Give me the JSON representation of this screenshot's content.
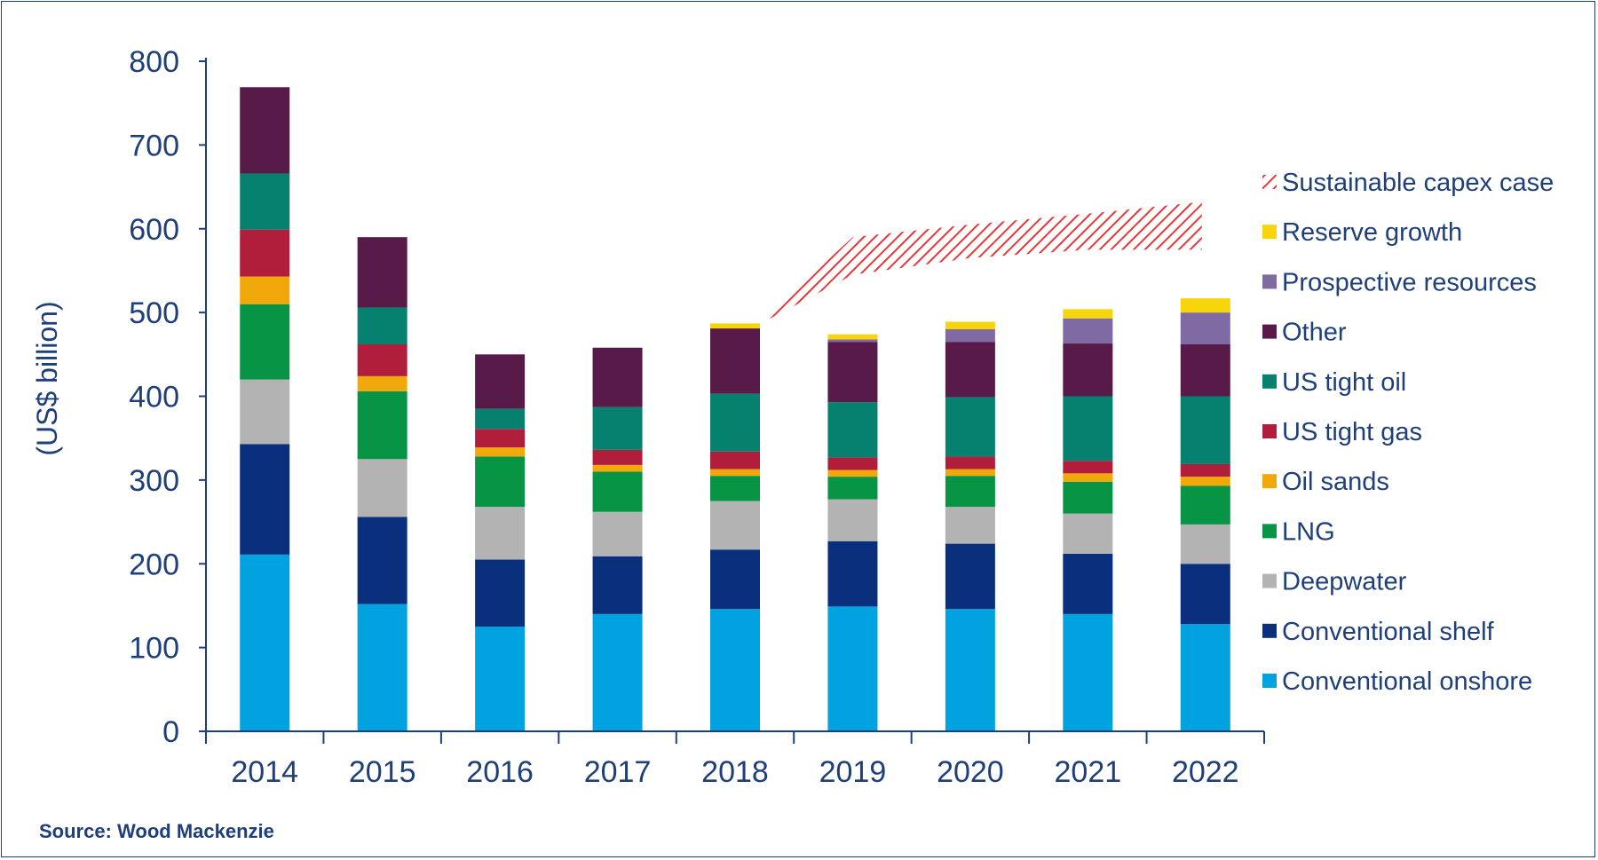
{
  "chart_data": {
    "type": "bar",
    "stacked": true,
    "title": "",
    "xlabel": "",
    "ylabel": "(US$ billion)",
    "ylim": [
      0,
      800
    ],
    "yticks": [
      0,
      100,
      200,
      300,
      400,
      500,
      600,
      700,
      800
    ],
    "categories": [
      "2014",
      "2015",
      "2016",
      "2017",
      "2018",
      "2019",
      "2020",
      "2021",
      "2022"
    ],
    "series": [
      {
        "name": "Conventional onshore",
        "color": "#00a3e0",
        "values": [
          211,
          152,
          125,
          140,
          146,
          149,
          146,
          140,
          128
        ]
      },
      {
        "name": "Conventional shelf",
        "color": "#0a2f7c",
        "values": [
          132,
          104,
          80,
          69,
          71,
          78,
          78,
          72,
          72
        ]
      },
      {
        "name": "Deepwater",
        "color": "#b3b3b3",
        "values": [
          77,
          69,
          63,
          53,
          58,
          50,
          44,
          48,
          47
        ]
      },
      {
        "name": "LNG",
        "color": "#079444",
        "values": [
          90,
          81,
          60,
          48,
          30,
          27,
          37,
          38,
          46
        ]
      },
      {
        "name": "Oil sands",
        "color": "#f1a80a",
        "values": [
          33,
          18,
          11,
          8,
          8,
          8,
          8,
          10,
          11
        ]
      },
      {
        "name": "US tight gas",
        "color": "#b01e3c",
        "values": [
          56,
          38,
          22,
          18,
          21,
          15,
          15,
          15,
          15
        ]
      },
      {
        "name": "US tight oil",
        "color": "#06806f",
        "values": [
          67,
          44,
          24,
          51,
          69,
          66,
          71,
          77,
          81
        ]
      },
      {
        "name": "Other",
        "color": "#581a48",
        "values": [
          103,
          84,
          65,
          71,
          78,
          72,
          66,
          63,
          62
        ]
      },
      {
        "name": "Prospective resources",
        "color": "#7f6aa4",
        "values": [
          0,
          0,
          0,
          0,
          0,
          3,
          15,
          30,
          38
        ]
      },
      {
        "name": "Reserve growth",
        "color": "#f7d50d",
        "values": [
          0,
          0,
          0,
          0,
          6,
          6,
          9,
          11,
          17
        ]
      }
    ],
    "sustainable_capex_case": {
      "name": "Sustainable capex case",
      "color": "#e8373a",
      "x": [
        "2018",
        "2019",
        "2020",
        "2021",
        "2022"
      ],
      "lower": [
        483,
        545,
        565,
        575,
        575
      ],
      "upper": [
        483,
        590,
        605,
        618,
        632
      ]
    },
    "legend_order": [
      "Sustainable capex case",
      "Reserve growth",
      "Prospective resources",
      "Other",
      "US tight oil",
      "US tight gas",
      "Oil sands",
      "LNG",
      "Deepwater",
      "Conventional shelf",
      "Conventional onshore"
    ],
    "legend_position": "right"
  },
  "source": "Source: Wood Mackenzie"
}
